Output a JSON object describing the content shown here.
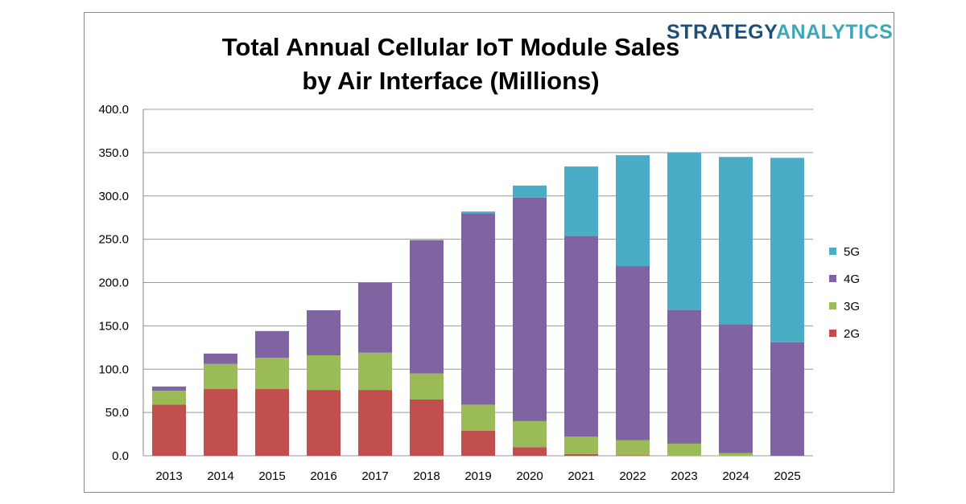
{
  "chart_data": {
    "type": "bar",
    "stacked": true,
    "title": "Total Annual Cellular IoT Module Sales\nby Air Interface (Millions)",
    "title_lines": [
      "Total Annual Cellular IoT Module Sales",
      "by Air Interface (Millions)"
    ],
    "logo": {
      "part1": "STRATEGY",
      "part2": "ANALYTICS"
    },
    "xlabel": "",
    "ylabel": "",
    "ylim": [
      0,
      400
    ],
    "yticks": [
      "0.0",
      "50.0",
      "100.0",
      "150.0",
      "200.0",
      "250.0",
      "300.0",
      "350.0",
      "400.0"
    ],
    "grid": true,
    "legend_position": "right",
    "categories": [
      "2013",
      "2014",
      "2015",
      "2016",
      "2017",
      "2018",
      "2019",
      "2020",
      "2021",
      "2022",
      "2023",
      "2024",
      "2025"
    ],
    "series": [
      {
        "name": "2G",
        "color": "#c0504d",
        "values": [
          59,
          77,
          77,
          76,
          76,
          65,
          29,
          10,
          2,
          0.5,
          0,
          0,
          0
        ]
      },
      {
        "name": "3G",
        "color": "#9bbb59",
        "values": [
          16,
          29,
          36,
          40,
          43,
          30,
          30,
          30,
          20,
          17.5,
          14,
          3,
          0
        ]
      },
      {
        "name": "4G",
        "color": "#8064a2",
        "values": [
          5,
          12,
          31,
          52,
          81,
          154,
          221,
          258,
          232,
          201,
          154,
          149,
          131
        ]
      },
      {
        "name": "5G",
        "color": "#4bacc6",
        "values": [
          0,
          0,
          0,
          0,
          0,
          0,
          2,
          14,
          80,
          128,
          182,
          193,
          213
        ]
      }
    ]
  }
}
